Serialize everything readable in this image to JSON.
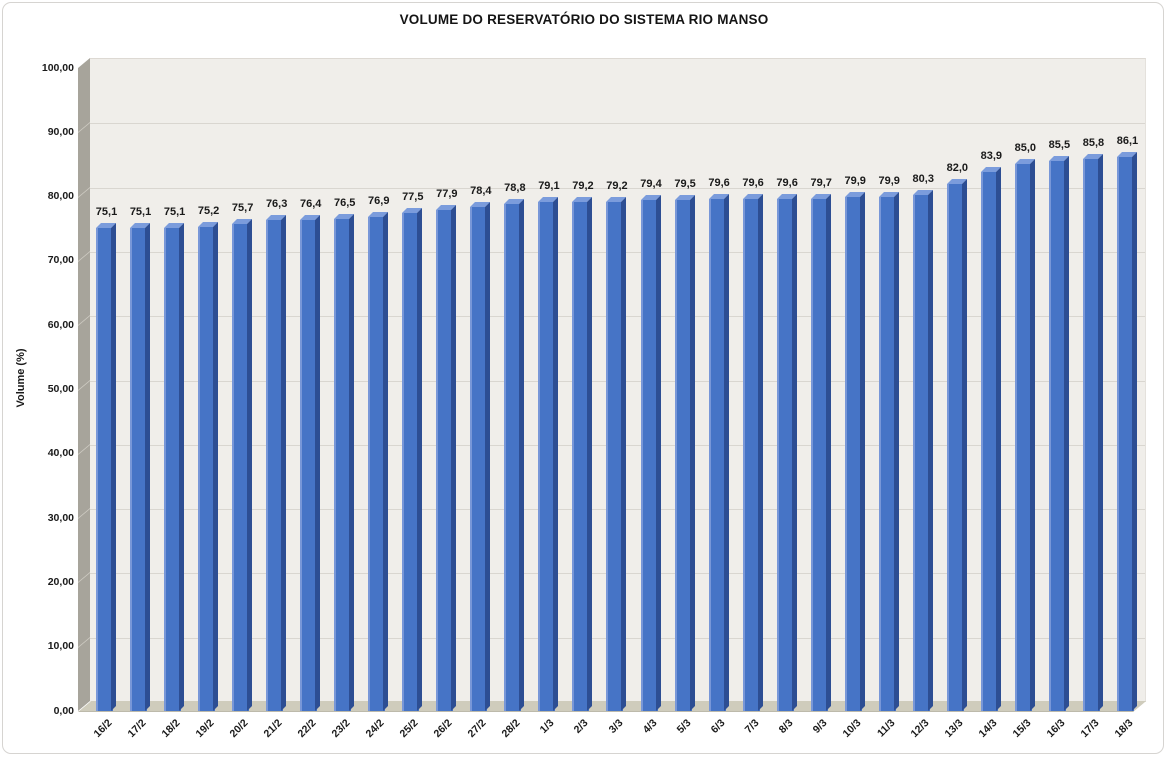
{
  "chart_data": {
    "type": "bar",
    "style": "3d-column",
    "title": "VOLUME DO RESERVATÓRIO DO SISTEMA RIO MANSO",
    "ylabel": "Volume (%)",
    "xlabel": "",
    "ylim": [
      0,
      100
    ],
    "ytick_step": 10,
    "ytick_labels": [
      "0,00",
      "10,00",
      "20,00",
      "30,00",
      "40,00",
      "50,00",
      "60,00",
      "70,00",
      "80,00",
      "90,00",
      "100,00"
    ],
    "grid": "horizontal",
    "legend": "none",
    "categories": [
      "16/2",
      "17/2",
      "18/2",
      "19/2",
      "20/2",
      "21/2",
      "22/2",
      "23/2",
      "24/2",
      "25/2",
      "26/2",
      "27/2",
      "28/2",
      "1/3",
      "2/3",
      "3/3",
      "4/3",
      "5/3",
      "6/3",
      "7/3",
      "8/3",
      "9/3",
      "10/3",
      "11/3",
      "12/3",
      "13/3",
      "14/3",
      "15/3",
      "16/3",
      "17/3",
      "18/3"
    ],
    "values": [
      75.1,
      75.1,
      75.1,
      75.2,
      75.7,
      76.3,
      76.4,
      76.5,
      76.9,
      77.5,
      77.9,
      78.4,
      78.8,
      79.1,
      79.2,
      79.2,
      79.4,
      79.5,
      79.6,
      79.6,
      79.6,
      79.7,
      79.9,
      79.9,
      80.3,
      82.0,
      83.9,
      85.0,
      85.5,
      85.8,
      86.1
    ],
    "value_labels": [
      "75,1",
      "75,1",
      "75,1",
      "75,2",
      "75,7",
      "76,3",
      "76,4",
      "76,5",
      "76,9",
      "77,5",
      "77,9",
      "78,4",
      "78,8",
      "79,1",
      "79,2",
      "79,2",
      "79,4",
      "79,5",
      "79,6",
      "79,6",
      "79,6",
      "79,7",
      "79,9",
      "79,9",
      "80,3",
      "82,0",
      "83,9",
      "85,0",
      "85,5",
      "85,8",
      "86,1"
    ],
    "colors": {
      "bar_front": "#4674c6",
      "bar_front_highlight": "#7897d8",
      "bar_side": "#2d4e93",
      "bar_top": "#7b9cdc",
      "back_wall": "#f0eeea",
      "side_wall": "#a7a49b",
      "floor": "#cfccbc",
      "gridline": "#d9d6d0",
      "text": "#1a1a1a"
    }
  }
}
